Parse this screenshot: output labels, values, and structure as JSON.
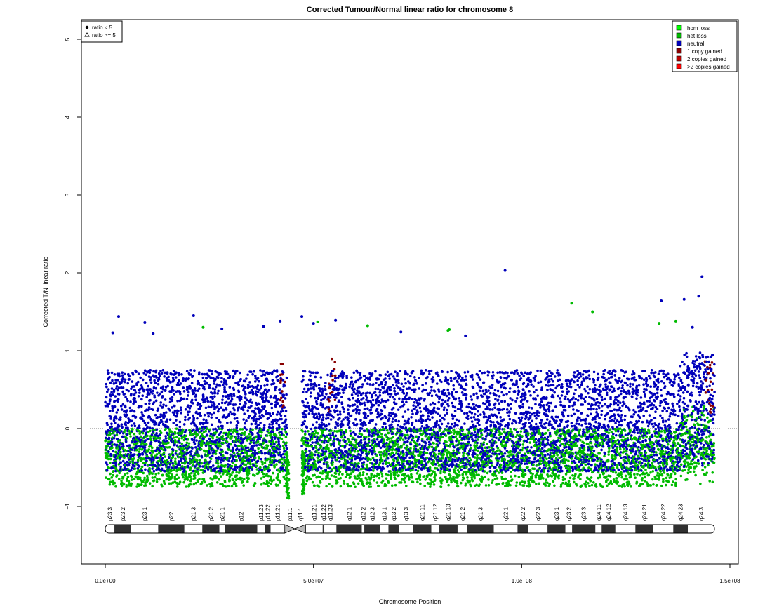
{
  "chart_data": {
    "type": "scatter",
    "title": "Corrected Tumour/Normal linear ratio for chromosome  8",
    "xlabel": "Chromosome Position",
    "ylabel": "Corrected T/N linear ratio",
    "xlim": [
      0,
      150000000
    ],
    "ylim": [
      -1.5,
      5.2
    ],
    "x_ticks": [
      {
        "value": 0,
        "label": "0.0e+00"
      },
      {
        "value": 50000000,
        "label": "5.0e+07"
      },
      {
        "value": 100000000,
        "label": "1.0e+08"
      },
      {
        "value": 150000000,
        "label": "1.5e+08"
      }
    ],
    "y_ticks": [
      {
        "value": -1,
        "label": "−1"
      },
      {
        "value": 0,
        "label": "0"
      },
      {
        "value": 1,
        "label": "1"
      },
      {
        "value": 2,
        "label": "2"
      },
      {
        "value": 3,
        "label": "3"
      },
      {
        "value": 4,
        "label": "4"
      },
      {
        "value": 5,
        "label": "5"
      }
    ],
    "reference_line": {
      "y": 0,
      "style": "dotted"
    },
    "shape_legend": {
      "position": "top-left",
      "entries": [
        {
          "marker": "filled-circle",
          "label": "ratio < 5"
        },
        {
          "marker": "open-triangle",
          "label": "ratio >= 5"
        }
      ]
    },
    "color_legend": {
      "position": "top-right",
      "entries": [
        {
          "label": "hom loss",
          "color": "#00ff00"
        },
        {
          "label": "het loss",
          "color": "#00bb00"
        },
        {
          "label": "neutral",
          "color": "#0000bb"
        },
        {
          "label": "1 copy gained",
          "color": "#880000"
        },
        {
          "label": "2 copies gained",
          "color": "#bb0000"
        },
        {
          "label": ">2 copies gained",
          "color": "#ff0000"
        }
      ]
    },
    "centromere": {
      "start": 43600000,
      "end": 47400000
    },
    "chromosome_end": 146300000,
    "cytobands": [
      {
        "name": "p23.3",
        "start": 0,
        "end": 2200000,
        "stain": "gneg"
      },
      {
        "name": "p23.2",
        "start": 2200000,
        "end": 6200000,
        "stain": "gpos"
      },
      {
        "name": "p23.1",
        "start": 6200000,
        "end": 12700000,
        "stain": "gneg"
      },
      {
        "name": "p22",
        "start": 12700000,
        "end": 19000000,
        "stain": "gpos"
      },
      {
        "name": "p21.3",
        "start": 19000000,
        "end": 23300000,
        "stain": "gneg"
      },
      {
        "name": "p21.2",
        "start": 23300000,
        "end": 27400000,
        "stain": "gpos"
      },
      {
        "name": "p21.1",
        "start": 27400000,
        "end": 28800000,
        "stain": "gneg"
      },
      {
        "name": "p12",
        "start": 28800000,
        "end": 36500000,
        "stain": "gpos"
      },
      {
        "name": "p11.23",
        "start": 36500000,
        "end": 38300000,
        "stain": "gneg"
      },
      {
        "name": "p11.22",
        "start": 38300000,
        "end": 39700000,
        "stain": "gpos"
      },
      {
        "name": "p11.21",
        "start": 39700000,
        "end": 43100000,
        "stain": "gneg"
      },
      {
        "name": "p11.1",
        "start": 43100000,
        "end": 45600000,
        "stain": "acen"
      },
      {
        "name": "q11.1",
        "start": 45600000,
        "end": 48100000,
        "stain": "acen"
      },
      {
        "name": "q11.21",
        "start": 48100000,
        "end": 52200000,
        "stain": "gneg"
      },
      {
        "name": "q11.22",
        "start": 52200000,
        "end": 52600000,
        "stain": "gpos"
      },
      {
        "name": "q11.23",
        "start": 52600000,
        "end": 55500000,
        "stain": "gneg"
      },
      {
        "name": "q12.1",
        "start": 55500000,
        "end": 61600000,
        "stain": "gpos"
      },
      {
        "name": "q12.2",
        "start": 61600000,
        "end": 62200000,
        "stain": "gneg"
      },
      {
        "name": "q12.3",
        "start": 62200000,
        "end": 66000000,
        "stain": "gpos"
      },
      {
        "name": "q13.1",
        "start": 66000000,
        "end": 68000000,
        "stain": "gneg"
      },
      {
        "name": "q13.2",
        "start": 68000000,
        "end": 70500000,
        "stain": "gpos"
      },
      {
        "name": "q13.3",
        "start": 70500000,
        "end": 73900000,
        "stain": "gneg"
      },
      {
        "name": "q21.11",
        "start": 73900000,
        "end": 78300000,
        "stain": "gpos"
      },
      {
        "name": "q21.12",
        "start": 78300000,
        "end": 80100000,
        "stain": "gneg"
      },
      {
        "name": "q21.13",
        "start": 80100000,
        "end": 84600000,
        "stain": "gpos"
      },
      {
        "name": "q21.2",
        "start": 84600000,
        "end": 86900000,
        "stain": "gneg"
      },
      {
        "name": "q21.3",
        "start": 86900000,
        "end": 93300000,
        "stain": "gpos"
      },
      {
        "name": "q22.1",
        "start": 93300000,
        "end": 99000000,
        "stain": "gneg"
      },
      {
        "name": "q22.2",
        "start": 99000000,
        "end": 101600000,
        "stain": "gpos"
      },
      {
        "name": "q22.3",
        "start": 101600000,
        "end": 106200000,
        "stain": "gneg"
      },
      {
        "name": "q23.1",
        "start": 106200000,
        "end": 110500000,
        "stain": "gpos"
      },
      {
        "name": "q23.2",
        "start": 110500000,
        "end": 112100000,
        "stain": "gneg"
      },
      {
        "name": "q23.3",
        "start": 112100000,
        "end": 117700000,
        "stain": "gpos"
      },
      {
        "name": "q24.11",
        "start": 117700000,
        "end": 119200000,
        "stain": "gneg"
      },
      {
        "name": "q24.12",
        "start": 119200000,
        "end": 122500000,
        "stain": "gpos"
      },
      {
        "name": "q24.13",
        "start": 122500000,
        "end": 127300000,
        "stain": "gneg"
      },
      {
        "name": "q24.21",
        "start": 127300000,
        "end": 131500000,
        "stain": "gpos"
      },
      {
        "name": "q24.22",
        "start": 131500000,
        "end": 136400000,
        "stain": "gneg"
      },
      {
        "name": "q24.23",
        "start": 136400000,
        "end": 139900000,
        "stain": "gpos"
      },
      {
        "name": "q24.3",
        "start": 139900000,
        "end": 146300000,
        "stain": "gneg"
      }
    ],
    "outlier_points": [
      {
        "x": 3200000,
        "y": 1.44,
        "color": "#0000bb"
      },
      {
        "x": 1800000,
        "y": 1.23,
        "color": "#0000bb"
      },
      {
        "x": 9500000,
        "y": 1.36,
        "color": "#0000bb"
      },
      {
        "x": 11500000,
        "y": 1.22,
        "color": "#0000bb"
      },
      {
        "x": 21200000,
        "y": 1.45,
        "color": "#0000bb"
      },
      {
        "x": 23500000,
        "y": 1.3,
        "color": "#00bb00"
      },
      {
        "x": 28000000,
        "y": 1.28,
        "color": "#0000bb"
      },
      {
        "x": 38000000,
        "y": 1.31,
        "color": "#0000bb"
      },
      {
        "x": 42000000,
        "y": 1.38,
        "color": "#0000bb"
      },
      {
        "x": 47200000,
        "y": 1.44,
        "color": "#0000bb"
      },
      {
        "x": 50000000,
        "y": 1.35,
        "color": "#0000bb"
      },
      {
        "x": 51000000,
        "y": 1.37,
        "color": "#00bb00"
      },
      {
        "x": 55300000,
        "y": 1.39,
        "color": "#0000bb"
      },
      {
        "x": 63000000,
        "y": 1.32,
        "color": "#00bb00"
      },
      {
        "x": 71000000,
        "y": 1.24,
        "color": "#0000bb"
      },
      {
        "x": 82300000,
        "y": 1.26,
        "color": "#00bb00"
      },
      {
        "x": 82600000,
        "y": 1.27,
        "color": "#00bb00"
      },
      {
        "x": 86500000,
        "y": 1.19,
        "color": "#0000bb"
      },
      {
        "x": 96000000,
        "y": 2.03,
        "color": "#0000bb"
      },
      {
        "x": 112000000,
        "y": 1.61,
        "color": "#00bb00"
      },
      {
        "x": 117000000,
        "y": 1.5,
        "color": "#00bb00"
      },
      {
        "x": 133500000,
        "y": 1.64,
        "color": "#0000bb"
      },
      {
        "x": 133000000,
        "y": 1.35,
        "color": "#00bb00"
      },
      {
        "x": 137000000,
        "y": 1.38,
        "color": "#00bb00"
      },
      {
        "x": 139000000,
        "y": 1.66,
        "color": "#0000bb"
      },
      {
        "x": 142500000,
        "y": 1.7,
        "color": "#0000bb"
      },
      {
        "x": 143300000,
        "y": 1.95,
        "color": "#0000bb"
      },
      {
        "x": 141000000,
        "y": 1.3,
        "color": "#0000bb"
      }
    ],
    "bulk_distribution": {
      "description_free_summary": "dense scatter of probe ratios mostly between -0.7 and 0.9, colored neutral and het loss",
      "neutral_color": "#0000bb",
      "het_loss_color": "#00bb00",
      "gain_color": "#880000",
      "gain_regions": [
        {
          "start": 42000000,
          "end": 43300000
        },
        {
          "start": 53500000,
          "end": 55200000
        },
        {
          "start": 144000000,
          "end": 146000000
        }
      ],
      "typical_min": -0.75,
      "typical_max": 0.9
    }
  }
}
